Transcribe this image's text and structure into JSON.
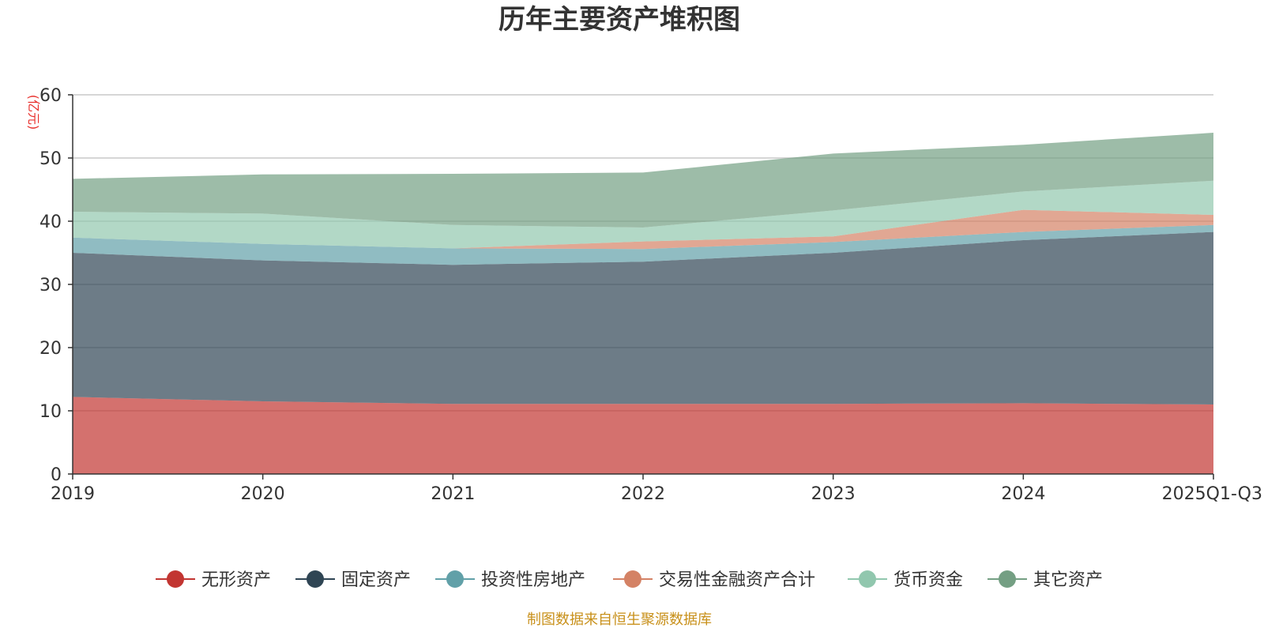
{
  "chart_data": {
    "type": "area",
    "stacked": true,
    "title": "历年主要资产堆积图",
    "ylabel": "(亿元)",
    "ylim": [
      0,
      60
    ],
    "yticks": [
      0,
      10,
      20,
      30,
      40,
      50,
      60
    ],
    "categories": [
      "2019",
      "2020",
      "2021",
      "2022",
      "2023",
      "2024",
      "2025Q1-Q3"
    ],
    "series": [
      {
        "name": "无形资产",
        "color": "#c23531",
        "values": [
          12.2,
          11.5,
          11.1,
          11.1,
          11.1,
          11.2,
          11.0
        ]
      },
      {
        "name": "固定资产",
        "color": "#2f4554",
        "values": [
          22.8,
          22.3,
          22.0,
          22.5,
          23.9,
          25.8,
          27.3
        ]
      },
      {
        "name": "投资性房地产",
        "color": "#61a0a8",
        "values": [
          2.4,
          2.6,
          2.6,
          2.0,
          1.7,
          1.3,
          1.1
        ]
      },
      {
        "name": "交易性金融资产合计",
        "color": "#d48265",
        "values": [
          0,
          0,
          0,
          1.2,
          0.9,
          3.5,
          1.6
        ]
      },
      {
        "name": "货币资金",
        "color": "#91c7ae",
        "values": [
          4.1,
          4.8,
          3.7,
          2.2,
          4.1,
          2.9,
          5.4
        ]
      },
      {
        "name": "其它资产",
        "color": "#749f83",
        "values": [
          5.2,
          6.2,
          8.1,
          8.7,
          9.0,
          7.4,
          7.6
        ]
      }
    ],
    "legend_position": "bottom",
    "grid": true
  },
  "source_note": "制图数据来自恒生聚源数据库"
}
